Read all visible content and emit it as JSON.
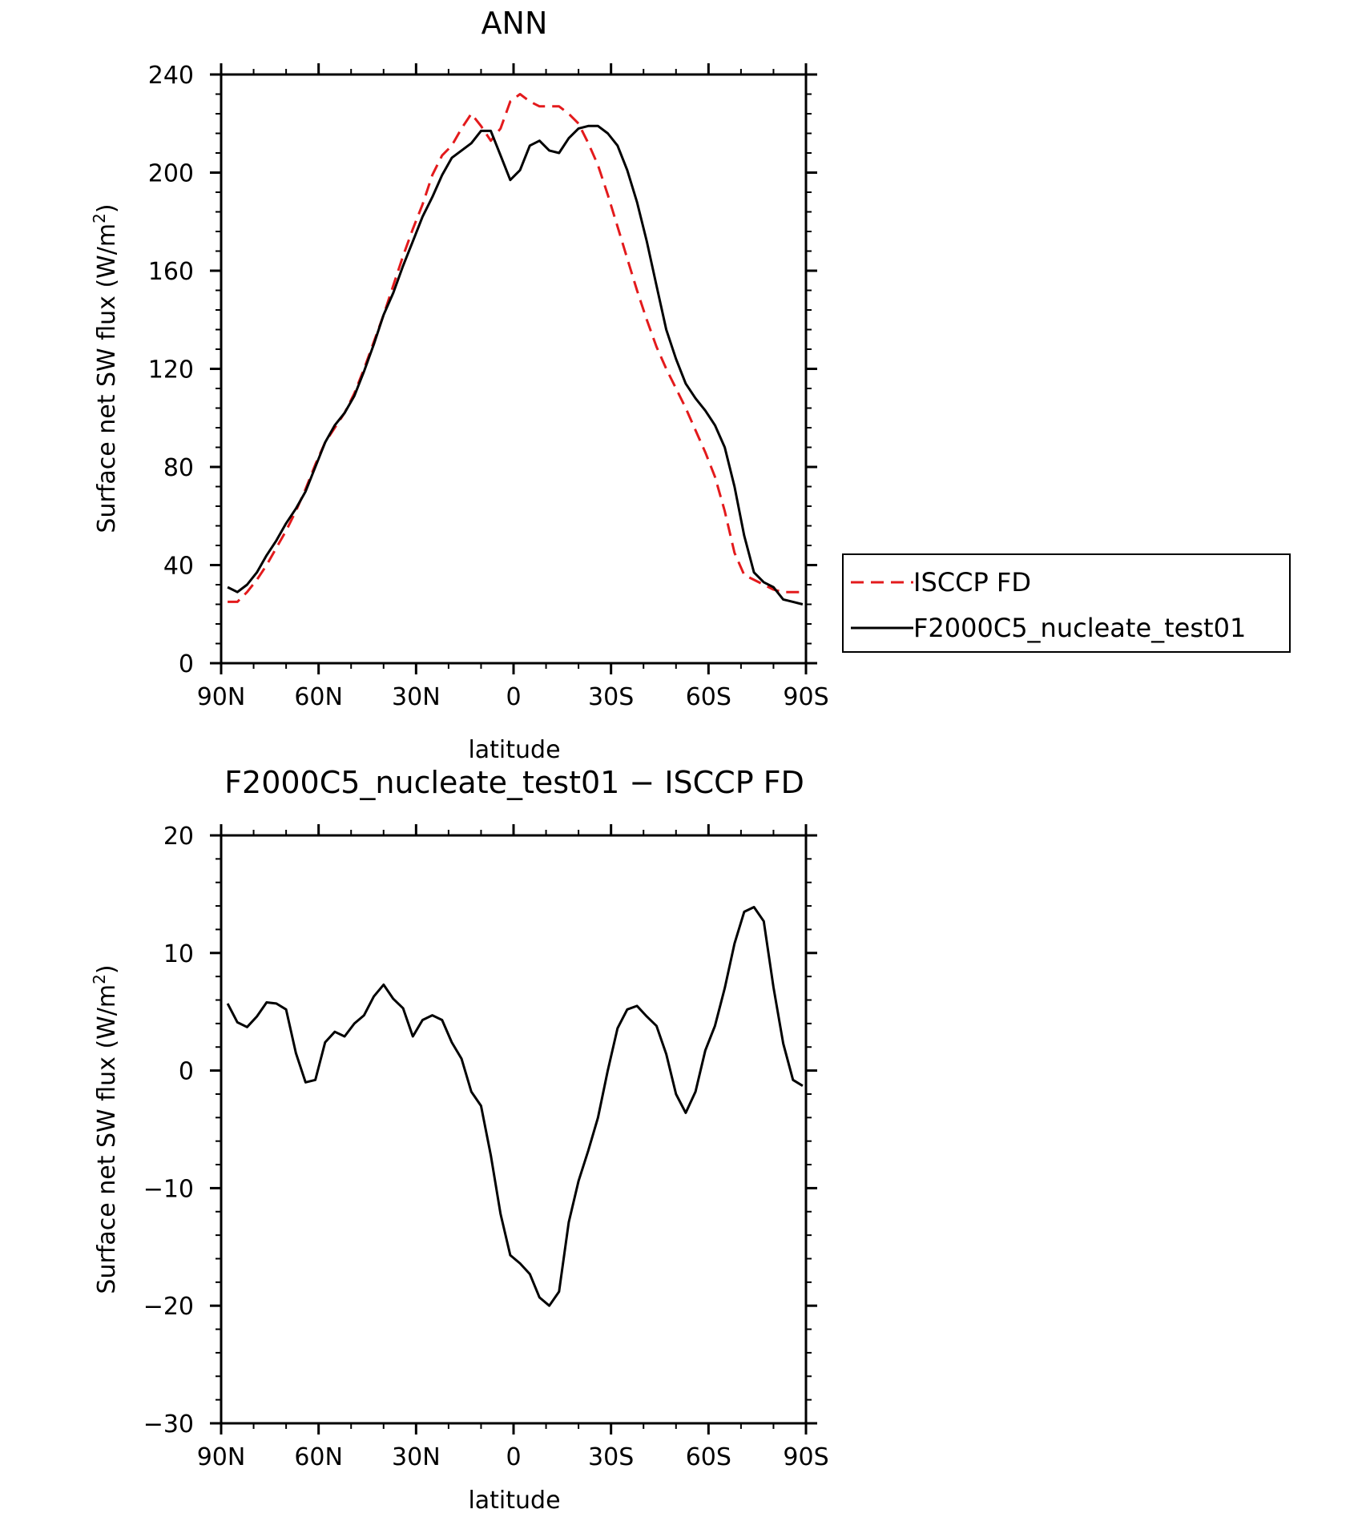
{
  "chart_data": [
    {
      "type": "line",
      "title": "ANN",
      "xlabel": "latitude",
      "ylabel": "Surface net SW flux (W/m²)",
      "x_ticks": [
        "90N",
        "60N",
        "30N",
        "0",
        "30S",
        "60S",
        "90S"
      ],
      "xlim": [
        90,
        -90
      ],
      "ylim": [
        0,
        240
      ],
      "y_ticks": [
        "0",
        "40",
        "80",
        "120",
        "160",
        "200",
        "240"
      ],
      "legend_position": "right",
      "series": [
        {
          "name": "ISCCP FD",
          "color": "#e31a1c",
          "dash": "dashed",
          "x": [
            88,
            85,
            82,
            79,
            76,
            73,
            70,
            67,
            64,
            61,
            58,
            55,
            52,
            49,
            46,
            43,
            40,
            37,
            34,
            31,
            28,
            25,
            22,
            19,
            16,
            13,
            10,
            7,
            4,
            1,
            -2,
            -5,
            -8,
            -11,
            -14,
            -17,
            -20,
            -23,
            -26,
            -29,
            -32,
            -35,
            -38,
            -41,
            -44,
            -47,
            -50,
            -53,
            -56,
            -59,
            -62,
            -65,
            -68,
            -71,
            -74,
            -77,
            -80,
            -83,
            -86,
            -89
          ],
          "values": [
            25,
            25,
            29,
            34,
            40,
            47,
            54,
            62,
            71,
            81,
            90,
            96,
            102,
            110,
            120,
            131,
            142,
            154,
            166,
            177,
            187,
            199,
            207,
            211,
            218,
            224,
            219,
            213,
            218,
            229,
            232,
            229,
            227,
            227,
            227,
            224,
            220,
            212,
            203,
            191,
            178,
            165,
            152,
            140,
            129,
            120,
            112,
            104,
            95,
            86,
            76,
            62,
            45,
            36,
            34,
            32,
            30,
            29,
            29,
            29
          ]
        },
        {
          "name": "F2000C5_nucleate_test01",
          "color": "#000000",
          "dash": "solid",
          "x": [
            88,
            85,
            82,
            79,
            76,
            73,
            70,
            67,
            64,
            61,
            58,
            55,
            52,
            49,
            46,
            43,
            40,
            37,
            34,
            31,
            28,
            25,
            22,
            19,
            16,
            13,
            10,
            7,
            4,
            1,
            -2,
            -5,
            -8,
            -11,
            -14,
            -17,
            -20,
            -23,
            -26,
            -29,
            -32,
            -35,
            -38,
            -41,
            -44,
            -47,
            -50,
            -53,
            -56,
            -59,
            -62,
            -65,
            -68,
            -71,
            -74,
            -77,
            -80,
            -83,
            -86,
            -89
          ],
          "values": [
            31,
            29,
            32,
            37,
            44,
            50,
            57,
            63,
            70,
            80,
            90,
            97,
            102,
            109,
            119,
            130,
            142,
            151,
            162,
            172,
            182,
            190,
            199,
            206,
            209,
            212,
            217,
            217,
            207,
            197,
            201,
            211,
            213,
            209,
            208,
            214,
            218,
            219,
            219,
            216,
            211,
            201,
            188,
            172,
            154,
            136,
            124,
            114,
            108,
            103,
            97,
            88,
            72,
            52,
            37,
            33,
            31,
            26,
            25,
            24
          ]
        }
      ]
    },
    {
      "type": "line",
      "title": "F2000C5_nucleate_test01 − ISCCP FD",
      "xlabel": "latitude",
      "ylabel": "Surface net SW flux (W/m²)",
      "x_ticks": [
        "90N",
        "60N",
        "30N",
        "0",
        "30S",
        "60S",
        "90S"
      ],
      "xlim": [
        90,
        -90
      ],
      "ylim": [
        -30,
        20
      ],
      "y_ticks": [
        "−30",
        "−20",
        "−10",
        "0",
        "10",
        "20"
      ],
      "series": [
        {
          "color": "#000000",
          "dash": "solid",
          "x": [
            88,
            85,
            82,
            79,
            76,
            73,
            70,
            67,
            64,
            61,
            58,
            55,
            52,
            49,
            46,
            43,
            40,
            37,
            34,
            31,
            28,
            25,
            22,
            19,
            16,
            13,
            10,
            7,
            4,
            1,
            -2,
            -5,
            -8,
            -11,
            -14,
            -17,
            -20,
            -23,
            -26,
            -29,
            -32,
            -35,
            -38,
            -41,
            -44,
            -47,
            -50,
            -53,
            -56,
            -59,
            -62,
            -65,
            -68,
            -71,
            -74,
            -77,
            -80,
            -83,
            -86,
            -89
          ],
          "values": [
            5.7,
            4.1,
            3.7,
            4.6,
            5.8,
            5.7,
            5.2,
            1.5,
            -1.0,
            -0.8,
            2.4,
            3.3,
            2.9,
            4.0,
            4.7,
            6.3,
            7.3,
            6.1,
            5.3,
            2.9,
            4.3,
            4.7,
            4.3,
            2.4,
            1.0,
            -1.8,
            -3.0,
            -7.2,
            -12.2,
            -15.7,
            -16.4,
            -17.3,
            -19.3,
            -20.0,
            -18.8,
            -12.9,
            -9.4,
            -6.8,
            -4.0,
            0.0,
            3.6,
            5.2,
            5.5,
            4.6,
            3.8,
            1.4,
            -2.0,
            -3.6,
            -1.8,
            1.7,
            3.8,
            7.0,
            10.8,
            13.5,
            13.9,
            12.7,
            7.1,
            2.3,
            -0.8,
            -1.3
          ]
        }
      ]
    }
  ]
}
